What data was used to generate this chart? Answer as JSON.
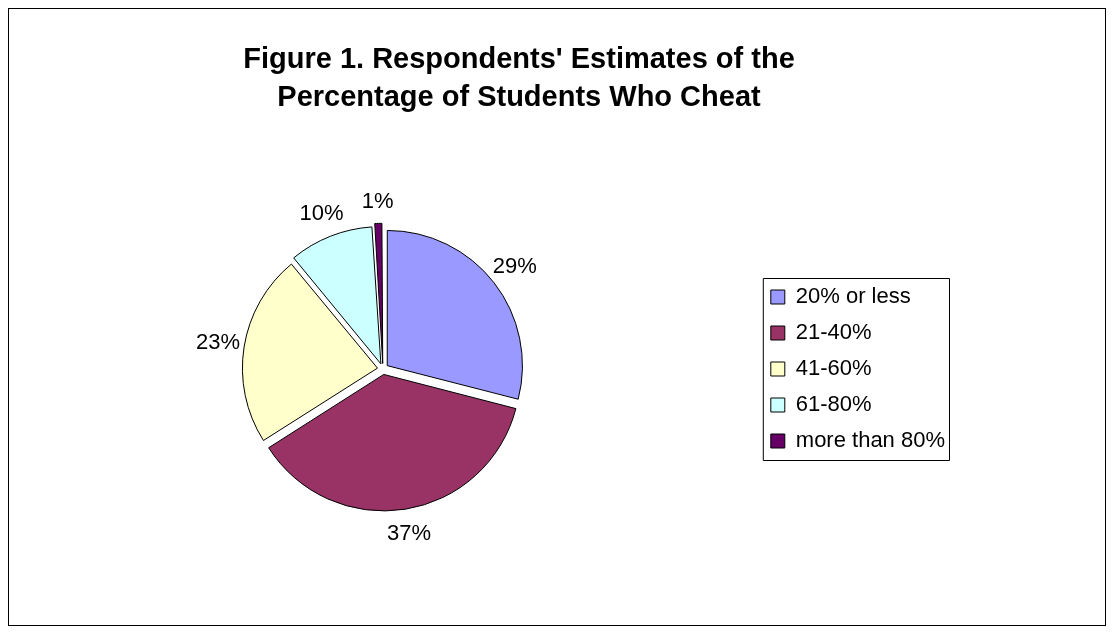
{
  "chart_data": {
    "type": "pie",
    "title": "Figure 1.  Respondents' Estimates of the Percentage of Students Who Cheat",
    "categories": [
      "20% or less",
      "21-40%",
      "41-60%",
      "61-80%",
      "more than 80%"
    ],
    "values": [
      29,
      37,
      23,
      10,
      1
    ],
    "colors": [
      "#9999ff",
      "#993366",
      "#ffffcc",
      "#ccffff",
      "#660066"
    ],
    "value_labels": [
      "29%",
      "37%",
      "23%",
      "10%",
      "1%"
    ],
    "legend": "right"
  }
}
